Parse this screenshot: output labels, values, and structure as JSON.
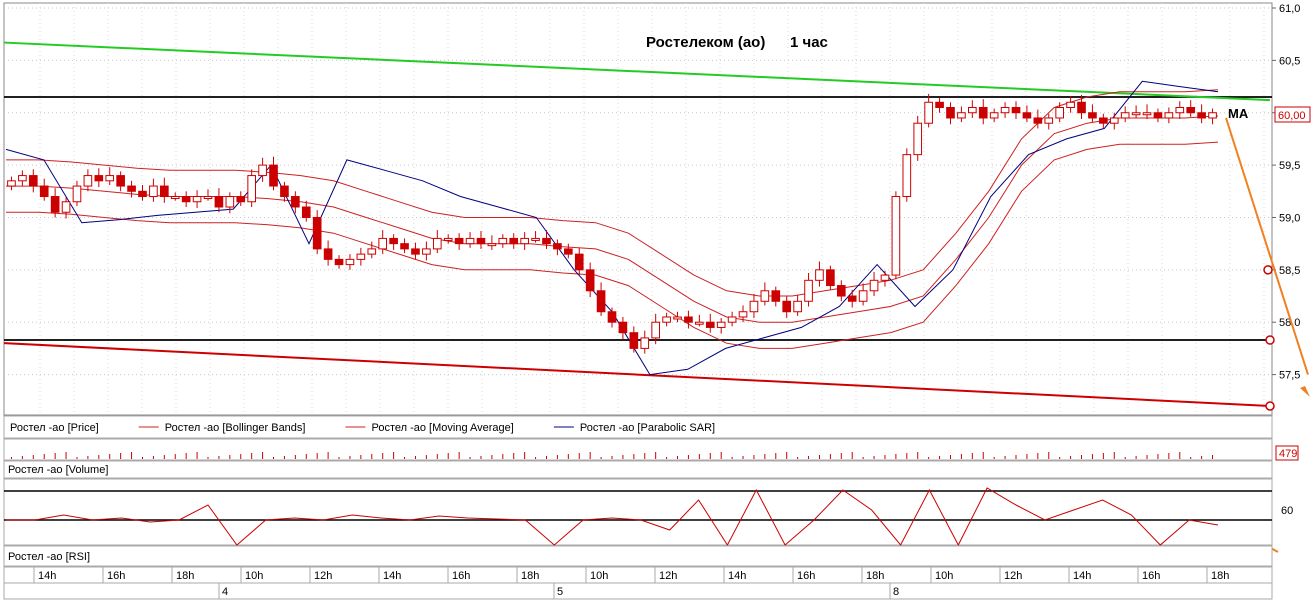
{
  "chart_data": {
    "type": "candlestick",
    "title": "Ростелеком (ао)",
    "timeframe": "1 час",
    "price_axis": {
      "ylim": [
        57.2,
        61.0
      ],
      "ticks": [
        "61,0",
        "60,5",
        "60,0",
        "59,5",
        "59,0",
        "58,5",
        "58,0",
        "57,5"
      ]
    },
    "last_price_label": "60,00",
    "ma_annotation": "MA",
    "legend": [
      {
        "name": "Ростел -ао [Price]",
        "color": "#cc0000"
      },
      {
        "name": "Ростел -ао [Bollinger Bands]",
        "color": "#cc2222"
      },
      {
        "name": "Ростел -ао [Moving Average]",
        "color": "#cc2222"
      },
      {
        "name": "Ростел -ао [Parabolic SAR]",
        "color": "#000080"
      }
    ],
    "volume_panel": {
      "label": "Ростел -ао [Volume]",
      "last_value": "479"
    },
    "rsi_panel": {
      "label": "Ростел -ао [RSI]",
      "tick": "60"
    },
    "time_axis": {
      "hours": [
        "14h",
        "16h",
        "18h",
        "10h",
        "12h",
        "14h",
        "16h",
        "18h",
        "10h",
        "12h",
        "14h",
        "16h",
        "18h",
        "10h",
        "12h",
        "14h",
        "16h",
        "18h"
      ],
      "days": [
        "4",
        "5",
        "8"
      ]
    },
    "horizontal_levels": [
      60.15,
      57.83
    ],
    "trendlines": [
      {
        "name": "resistance",
        "color": "#22cc22",
        "from": 60.67,
        "to": 60.12
      },
      {
        "name": "support",
        "color": "#cc0000",
        "from": 57.8,
        "to": 57.2
      }
    ],
    "colors": {
      "bull": "#cc0000",
      "bear": "#cc0000",
      "sar": "#000080",
      "bands": "#cc2222",
      "forecast": "#f08020"
    },
    "candles": [
      59.35,
      59.4,
      59.3,
      59.2,
      59.05,
      59.15,
      59.3,
      59.4,
      59.35,
      59.4,
      59.3,
      59.25,
      59.2,
      59.3,
      59.2,
      59.2,
      59.15,
      59.2,
      59.2,
      59.1,
      59.2,
      59.15,
      59.4,
      59.5,
      59.3,
      59.2,
      59.1,
      59.0,
      58.7,
      58.6,
      58.55,
      58.6,
      58.65,
      58.7,
      58.8,
      58.75,
      58.7,
      58.65,
      58.7,
      58.8,
      58.8,
      58.75,
      58.8,
      58.75,
      58.75,
      58.8,
      58.75,
      58.8,
      58.8,
      58.75,
      58.7,
      58.65,
      58.5,
      58.3,
      58.1,
      58.0,
      57.9,
      57.75,
      57.85,
      58.0,
      58.05,
      58.05,
      58.0,
      58.0,
      57.95,
      58.0,
      58.05,
      58.1,
      58.2,
      58.3,
      58.2,
      58.1,
      58.2,
      58.4,
      58.5,
      58.35,
      58.25,
      58.2,
      58.3,
      58.4,
      58.45,
      59.2,
      59.6,
      59.9,
      60.1,
      60.05,
      59.95,
      60.0,
      60.05,
      59.95,
      60.0,
      60.05,
      60.0,
      59.95,
      59.9,
      59.95,
      60.05,
      60.1,
      60.0,
      59.95,
      59.9,
      59.95,
      60.0,
      60.0,
      60.0,
      59.95,
      60.0,
      60.05,
      60.0,
      59.95,
      60.0
    ],
    "moving_average": [
      59.3,
      59.3,
      59.28,
      59.25,
      59.22,
      59.2,
      59.2,
      59.2,
      59.18,
      59.15,
      59.1,
      59.0,
      58.9,
      58.8,
      58.75,
      58.75,
      58.75,
      58.72,
      58.7,
      58.6,
      58.4,
      58.2,
      58.05,
      58.0,
      58.0,
      58.05,
      58.1,
      58.15,
      58.25,
      58.6,
      59.0,
      59.5,
      59.8,
      59.9,
      59.95,
      59.95,
      59.95,
      59.97
    ],
    "parabolic_sar": [
      59.65,
      59.55,
      58.95,
      58.98,
      59.02,
      59.05,
      59.08,
      59.5,
      58.75,
      59.55,
      59.45,
      59.35,
      59.2,
      59.1,
      59.0,
      58.5,
      58.1,
      57.5,
      57.55,
      57.75,
      57.85,
      57.95,
      58.15,
      58.55,
      58.15,
      58.5,
      59.2,
      59.6,
      59.75,
      59.85,
      60.3,
      60.25,
      60.2
    ]
  }
}
